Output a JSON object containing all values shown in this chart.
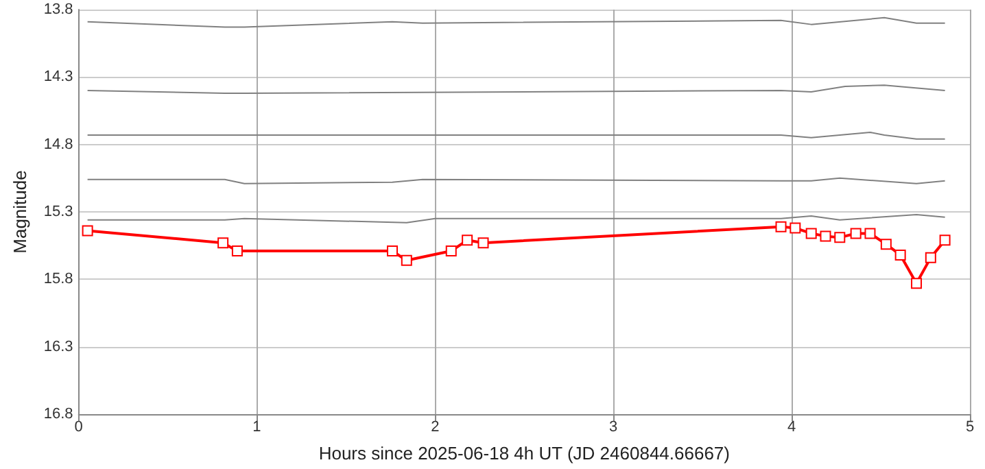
{
  "chart_data": {
    "type": "line",
    "xlabel": "Hours since 2025-06-18 4h UT (JD 2460844.66667)",
    "ylabel": "Magnitude",
    "xlim": [
      0,
      5
    ],
    "xticks": [
      0,
      1,
      2,
      3,
      4,
      5
    ],
    "ylim": [
      16.8,
      13.8
    ],
    "yticks": [
      13.8,
      14.3,
      14.8,
      15.3,
      15.8,
      16.3,
      16.8
    ],
    "grid": true,
    "series": [
      {
        "color": "#808080",
        "marker": "none",
        "x": [
          0.05,
          0.82,
          0.93,
          1.76,
          1.93,
          3.94,
          4.11,
          4.52,
          4.7,
          4.86
        ],
        "values": [
          13.89,
          13.93,
          13.93,
          13.89,
          13.9,
          13.88,
          13.91,
          13.86,
          13.9,
          13.9
        ]
      },
      {
        "color": "#808080",
        "marker": "none",
        "x": [
          0.05,
          0.82,
          0.93,
          3.94,
          4.11,
          4.3,
          4.52,
          4.86
        ],
        "values": [
          14.4,
          14.42,
          14.42,
          14.4,
          14.41,
          14.37,
          14.36,
          14.4
        ]
      },
      {
        "color": "#808080",
        "marker": "none",
        "x": [
          0.05,
          3.94,
          4.11,
          4.44,
          4.52,
          4.7,
          4.86
        ],
        "values": [
          14.73,
          14.73,
          14.75,
          14.71,
          14.73,
          14.76,
          14.76
        ]
      },
      {
        "color": "#808080",
        "marker": "none",
        "x": [
          0.05,
          0.82,
          0.93,
          1.76,
          1.93,
          3.94,
          4.11,
          4.27,
          4.7,
          4.86
        ],
        "values": [
          15.06,
          15.06,
          15.09,
          15.08,
          15.06,
          15.07,
          15.07,
          15.05,
          15.09,
          15.07
        ]
      },
      {
        "color": "#808080",
        "marker": "none",
        "x": [
          0.05,
          0.82,
          0.93,
          1.84,
          2.0,
          3.94,
          4.11,
          4.27,
          4.7,
          4.86
        ],
        "values": [
          15.36,
          15.36,
          15.35,
          15.38,
          15.35,
          15.35,
          15.33,
          15.36,
          15.32,
          15.34
        ]
      },
      {
        "color": "#ff0000",
        "marker": "square",
        "x": [
          0.05,
          0.81,
          0.89,
          1.76,
          1.84,
          2.09,
          2.18,
          2.27,
          3.94,
          4.02,
          4.11,
          4.19,
          4.27,
          4.36,
          4.44,
          4.53,
          4.61,
          4.7,
          4.78,
          4.86
        ],
        "values": [
          15.44,
          15.53,
          15.59,
          15.59,
          15.66,
          15.59,
          15.51,
          15.53,
          15.41,
          15.42,
          15.46,
          15.48,
          15.49,
          15.46,
          15.46,
          15.54,
          15.62,
          15.83,
          15.64,
          15.51
        ]
      }
    ]
  }
}
